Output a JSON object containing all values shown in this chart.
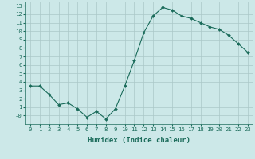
{
  "title": "",
  "xlabel": "Humidex (Indice chaleur)",
  "ylabel": "",
  "x": [
    0,
    1,
    2,
    3,
    4,
    5,
    6,
    7,
    8,
    9,
    10,
    11,
    12,
    13,
    14,
    15,
    16,
    17,
    18,
    19,
    20,
    21,
    22,
    23
  ],
  "y": [
    3.5,
    3.5,
    2.5,
    1.3,
    1.5,
    0.8,
    -0.2,
    0.5,
    -0.4,
    0.8,
    3.5,
    6.5,
    9.8,
    11.8,
    12.8,
    12.5,
    11.8,
    11.5,
    11.0,
    10.5,
    10.2,
    9.5,
    8.5,
    7.5
  ],
  "line_color": "#1a6b5a",
  "marker": "D",
  "marker_size": 2.0,
  "bg_color": "#cce8e8",
  "grid_color": "#aac8c8",
  "xlim": [
    -0.5,
    23.5
  ],
  "ylim": [
    -1,
    13.5
  ],
  "yticks": [
    0,
    1,
    2,
    3,
    4,
    5,
    6,
    7,
    8,
    9,
    10,
    11,
    12,
    13
  ],
  "ytick_labels": [
    "-0",
    "1",
    "2",
    "3",
    "4",
    "5",
    "6",
    "7",
    "8",
    "9",
    "10",
    "11",
    "12",
    "13"
  ],
  "xticks": [
    0,
    1,
    2,
    3,
    4,
    5,
    6,
    7,
    8,
    9,
    10,
    11,
    12,
    13,
    14,
    15,
    16,
    17,
    18,
    19,
    20,
    21,
    22,
    23
  ],
  "tick_fontsize": 5.2,
  "xlabel_fontsize": 6.5,
  "line_width": 0.8
}
